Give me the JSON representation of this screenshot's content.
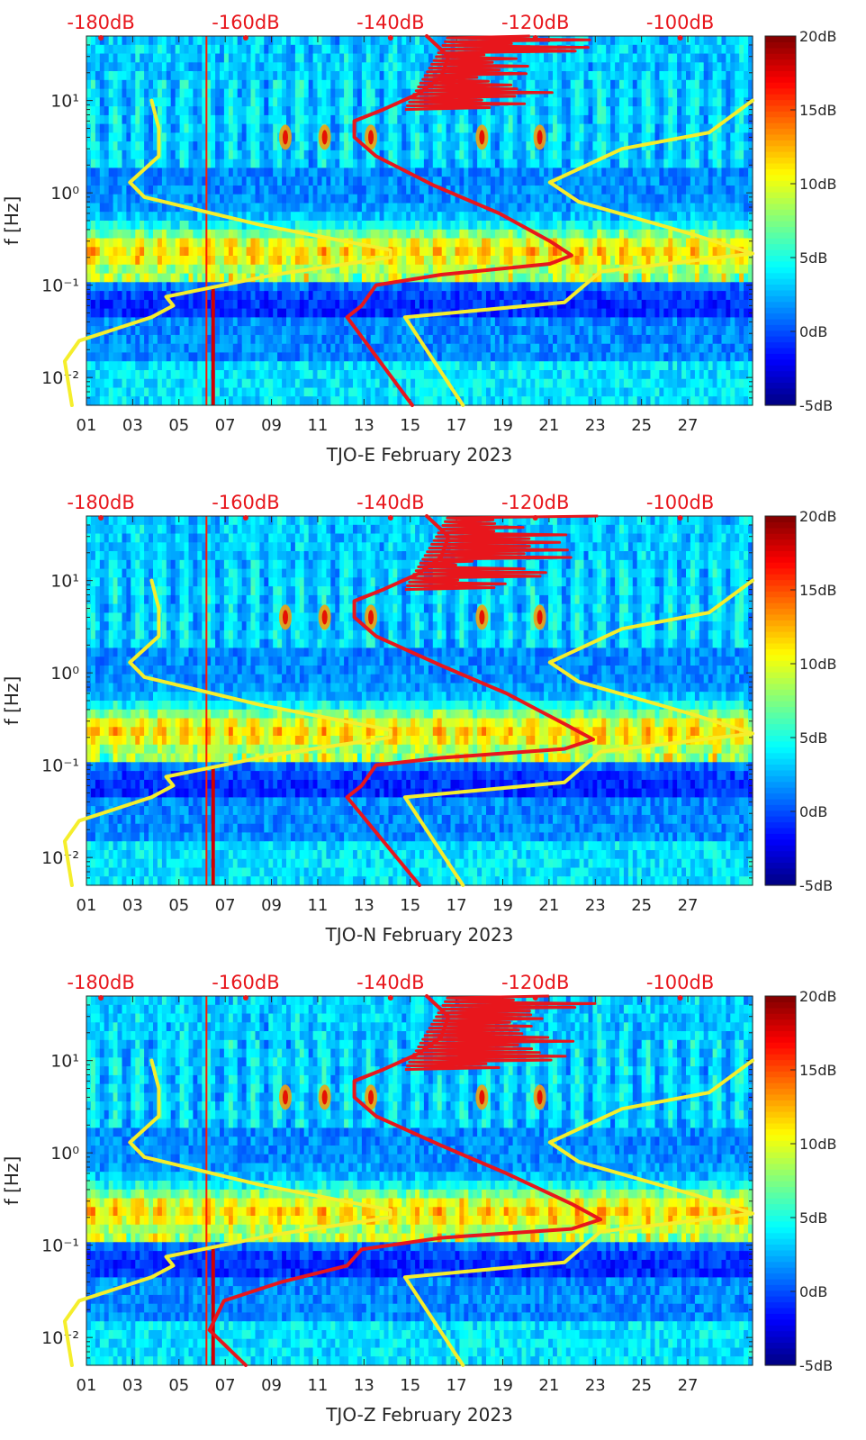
{
  "chart_data": [
    {
      "type": "heatmap",
      "title": "",
      "xlabel": "TJO-E February 2023",
      "ylabel": "f [Hz]",
      "x_unit": "day of February 2023",
      "x_ticks": [
        "01",
        "03",
        "05",
        "07",
        "09",
        "11",
        "13",
        "15",
        "17",
        "19",
        "21",
        "23",
        "25",
        "27"
      ],
      "x_range": [
        1,
        29.8
      ],
      "y_scale": "log",
      "y_ticks": [
        "10⁻²",
        "10⁻¹",
        "10⁰",
        "10¹"
      ],
      "y_range": [
        0.005,
        50
      ],
      "top_axis_ticks": [
        "-180dB",
        "-160dB",
        "-140dB",
        "-120dB",
        "-100dB"
      ],
      "top_axis_range": [
        -182,
        -90
      ],
      "colorbar": {
        "ticks": [
          "20dB",
          "15dB",
          "10dB",
          "5dB",
          "0dB",
          "-5dB"
        ],
        "range": [
          -5,
          20
        ],
        "colormap": "jet"
      },
      "series": [
        {
          "color": "#f5ee2c",
          "points": [
            [
              -184,
              0.005
            ],
            [
              -185,
              0.015
            ],
            [
              -183,
              0.025
            ],
            [
              -173,
              0.045
            ],
            [
              -170,
              0.06
            ],
            [
              -171,
              0.075
            ],
            [
              -166,
              0.09
            ],
            [
              -156,
              0.13
            ],
            [
              -140,
              0.2
            ],
            [
              -140,
              0.24
            ],
            [
              -158,
              0.45
            ],
            [
              -174,
              0.9
            ],
            [
              -176,
              1.3
            ],
            [
              -172,
              2.5
            ],
            [
              -172,
              5
            ],
            [
              -173,
              10
            ],
            null,
            [
              -130,
              0.005
            ],
            [
              -138,
              0.045
            ],
            [
              -116,
              0.065
            ],
            [
              -111,
              0.14
            ],
            [
              -90,
              0.22
            ],
            [
              -98,
              0.35
            ],
            [
              -114,
              0.8
            ],
            [
              -118,
              1.3
            ],
            [
              -108,
              3
            ],
            [
              -96,
              4.5
            ],
            [
              -90,
              10
            ]
          ]
        },
        {
          "color": "#e8161c",
          "points": [
            [
              -137,
              0.005
            ],
            [
              -146,
              0.045
            ],
            [
              -144,
              0.06
            ],
            [
              -142,
              0.1
            ],
            [
              -133,
              0.13
            ],
            [
              -118,
              0.17
            ],
            [
              -115,
              0.21
            ],
            [
              -118,
              0.3
            ],
            [
              -125,
              0.6
            ],
            [
              -134,
              1.2
            ],
            [
              -142,
              2.5
            ],
            [
              -145,
              4
            ],
            [
              -145,
              6
            ],
            [
              -141,
              8
            ],
            [
              -136,
              12
            ],
            [
              -133,
              18
            ],
            [
              -132,
              30
            ],
            [
              -135,
              50
            ]
          ]
        }
      ]
    },
    {
      "type": "heatmap",
      "title": "",
      "xlabel": "TJO-N February 2023",
      "ylabel": "f [Hz]",
      "x_unit": "day of February 2023",
      "x_ticks": [
        "01",
        "03",
        "05",
        "07",
        "09",
        "11",
        "13",
        "15",
        "17",
        "19",
        "21",
        "23",
        "25",
        "27"
      ],
      "x_range": [
        1,
        29.8
      ],
      "y_scale": "log",
      "y_ticks": [
        "10⁻²",
        "10⁻¹",
        "10⁰",
        "10¹"
      ],
      "y_range": [
        0.005,
        50
      ],
      "top_axis_ticks": [
        "-180dB",
        "-160dB",
        "-140dB",
        "-120dB",
        "-100dB"
      ],
      "top_axis_range": [
        -182,
        -90
      ],
      "colorbar": {
        "ticks": [
          "20dB",
          "15dB",
          "10dB",
          "5dB",
          "0dB",
          "-5dB"
        ],
        "range": [
          -5,
          20
        ],
        "colormap": "jet"
      },
      "series": [
        {
          "color": "#f5ee2c",
          "points": [
            [
              -184,
              0.005
            ],
            [
              -185,
              0.015
            ],
            [
              -183,
              0.025
            ],
            [
              -173,
              0.045
            ],
            [
              -170,
              0.06
            ],
            [
              -171,
              0.075
            ],
            [
              -166,
              0.09
            ],
            [
              -156,
              0.13
            ],
            [
              -140,
              0.2
            ],
            [
              -140,
              0.24
            ],
            [
              -158,
              0.45
            ],
            [
              -174,
              0.9
            ],
            [
              -176,
              1.3
            ],
            [
              -172,
              2.5
            ],
            [
              -172,
              5
            ],
            [
              -173,
              10
            ],
            null,
            [
              -130,
              0.005
            ],
            [
              -138,
              0.045
            ],
            [
              -116,
              0.065
            ],
            [
              -111,
              0.14
            ],
            [
              -90,
              0.22
            ],
            [
              -98,
              0.35
            ],
            [
              -114,
              0.8
            ],
            [
              -118,
              1.3
            ],
            [
              -108,
              3
            ],
            [
              -96,
              4.5
            ],
            [
              -90,
              10
            ]
          ]
        },
        {
          "color": "#e8161c",
          "points": [
            [
              -136,
              0.005
            ],
            [
              -146,
              0.045
            ],
            [
              -144,
              0.06
            ],
            [
              -142,
              0.1
            ],
            [
              -133,
              0.12
            ],
            [
              -116,
              0.15
            ],
            [
              -112,
              0.19
            ],
            [
              -116,
              0.28
            ],
            [
              -124,
              0.6
            ],
            [
              -133,
              1.2
            ],
            [
              -142,
              2.5
            ],
            [
              -145,
              4
            ],
            [
              -145,
              6
            ],
            [
              -141,
              8
            ],
            [
              -136,
              12
            ],
            [
              -133,
              18
            ],
            [
              -132,
              30
            ],
            [
              -135,
              50
            ]
          ]
        }
      ]
    },
    {
      "type": "heatmap",
      "title": "",
      "xlabel": "TJO-Z February 2023",
      "ylabel": "f [Hz]",
      "x_unit": "day of February 2023",
      "x_ticks": [
        "01",
        "03",
        "05",
        "07",
        "09",
        "11",
        "13",
        "15",
        "17",
        "19",
        "21",
        "23",
        "25",
        "27"
      ],
      "x_range": [
        1,
        29.8
      ],
      "y_scale": "log",
      "y_ticks": [
        "10⁻²",
        "10⁻¹",
        "10⁰",
        "10¹"
      ],
      "y_range": [
        0.005,
        50
      ],
      "top_axis_ticks": [
        "-180dB",
        "-160dB",
        "-140dB",
        "-120dB",
        "-100dB"
      ],
      "top_axis_range": [
        -182,
        -90
      ],
      "colorbar": {
        "ticks": [
          "20dB",
          "15dB",
          "10dB",
          "5dB",
          "0dB",
          "-5dB"
        ],
        "range": [
          -5,
          20
        ],
        "colormap": "jet"
      },
      "series": [
        {
          "color": "#f5ee2c",
          "points": [
            [
              -184,
              0.005
            ],
            [
              -185,
              0.015
            ],
            [
              -183,
              0.025
            ],
            [
              -173,
              0.045
            ],
            [
              -170,
              0.06
            ],
            [
              -171,
              0.075
            ],
            [
              -166,
              0.09
            ],
            [
              -156,
              0.13
            ],
            [
              -140,
              0.2
            ],
            [
              -140,
              0.24
            ],
            [
              -158,
              0.45
            ],
            [
              -174,
              0.9
            ],
            [
              -176,
              1.3
            ],
            [
              -172,
              2.5
            ],
            [
              -172,
              5
            ],
            [
              -173,
              10
            ],
            null,
            [
              -130,
              0.005
            ],
            [
              -138,
              0.045
            ],
            [
              -116,
              0.065
            ],
            [
              -111,
              0.14
            ],
            [
              -90,
              0.22
            ],
            [
              -98,
              0.35
            ],
            [
              -114,
              0.8
            ],
            [
              -118,
              1.3
            ],
            [
              -108,
              3
            ],
            [
              -96,
              4.5
            ],
            [
              -90,
              10
            ]
          ]
        },
        {
          "color": "#e8161c",
          "points": [
            [
              -160,
              0.005
            ],
            [
              -165,
              0.012
            ],
            [
              -163,
              0.025
            ],
            [
              -155,
              0.04
            ],
            [
              -146,
              0.06
            ],
            [
              -144,
              0.09
            ],
            [
              -133,
              0.12
            ],
            [
              -115,
              0.15
            ],
            [
              -111,
              0.19
            ],
            [
              -115,
              0.28
            ],
            [
              -124,
              0.6
            ],
            [
              -133,
              1.2
            ],
            [
              -142,
              2.5
            ],
            [
              -145,
              4
            ],
            [
              -145,
              6
            ],
            [
              -141,
              8
            ],
            [
              -136,
              12
            ],
            [
              -133,
              18
            ],
            [
              -132,
              30
            ],
            [
              -135,
              50
            ]
          ]
        }
      ]
    }
  ]
}
